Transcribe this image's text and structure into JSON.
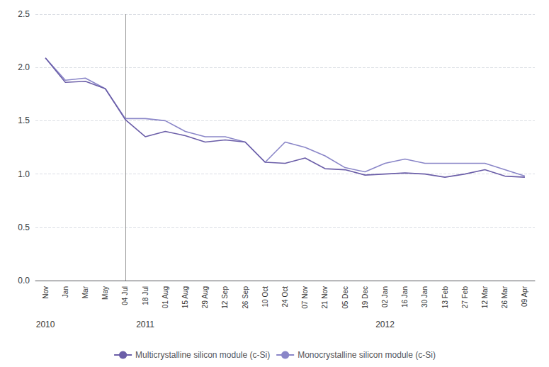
{
  "chart_data": {
    "type": "line",
    "categories": [
      "Nov",
      "Jan",
      "Mar",
      "May",
      "04 Jul",
      "18 Jul",
      "01 Aug",
      "15 Aug",
      "29 Aug",
      "12 Sep",
      "26 Sep",
      "10 Oct",
      "24 Oct",
      "07 Nov",
      "21 Nov",
      "05 Dec",
      "19 Dec",
      "02 Jan",
      "16 Jan",
      "30 Jan",
      "13 Feb",
      "27 Feb",
      "12 Mar",
      "26 Mar",
      "09 Apr"
    ],
    "series": [
      {
        "name": "Multicrystalline silicon module (c-Si)",
        "color": "#6B5EA8",
        "values": [
          2.09,
          1.86,
          1.87,
          1.8,
          1.51,
          1.35,
          1.4,
          1.36,
          1.3,
          1.32,
          1.3,
          1.11,
          1.1,
          1.15,
          1.05,
          1.04,
          0.99,
          1.0,
          1.01,
          1.0,
          0.97,
          1.0,
          1.04,
          0.98,
          0.97
        ]
      },
      {
        "name": "Monocrystalline silicon module (c-Si)",
        "color": "#8A86C8",
        "values": [
          2.09,
          1.88,
          1.9,
          1.8,
          1.52,
          1.52,
          1.5,
          1.4,
          1.35,
          1.35,
          1.3,
          1.11,
          1.3,
          1.25,
          1.17,
          1.06,
          1.02,
          1.1,
          1.14,
          1.1,
          1.1,
          1.1,
          1.1,
          1.04,
          0.98
        ]
      }
    ],
    "annotations": [
      {
        "text": "2010",
        "category": "Nov"
      },
      {
        "text": "2011",
        "category": "18 Jul"
      },
      {
        "text": "2012",
        "category": "02 Jan"
      }
    ],
    "vline": {
      "category": "04 Jul",
      "color": "#999999"
    },
    "ylim": [
      0.0,
      2.5
    ],
    "yticks": [
      {
        "value": 0.0,
        "label": "0.0"
      },
      {
        "value": 0.5,
        "label": "0.5"
      },
      {
        "value": 1.0,
        "label": "1.0"
      },
      {
        "value": 1.5,
        "label": "1.5"
      },
      {
        "value": 2.0,
        "label": "2.0"
      },
      {
        "value": 2.5,
        "label": "2.5"
      }
    ],
    "grid": true,
    "legend": "bottom"
  }
}
